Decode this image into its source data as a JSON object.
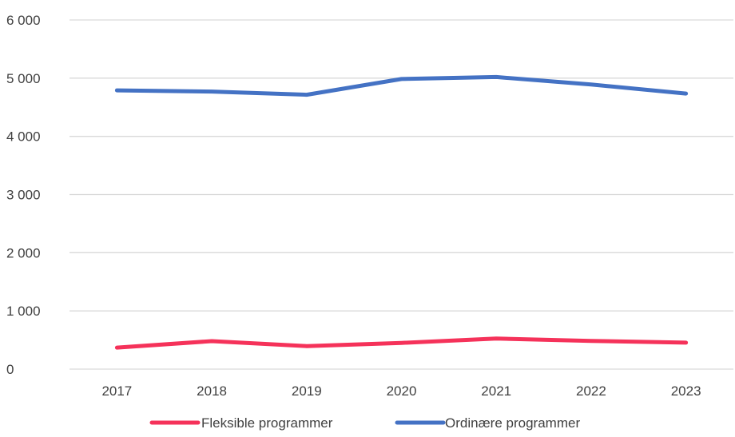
{
  "chart_data": {
    "type": "line",
    "categories": [
      "2017",
      "2018",
      "2019",
      "2020",
      "2021",
      "2022",
      "2023"
    ],
    "series": [
      {
        "name": "Fleksible programmer",
        "color": "#f5325a",
        "values": [
          370,
          480,
          395,
          450,
          525,
          485,
          455
        ]
      },
      {
        "name": "Ordinære programmer",
        "color": "#4472c4",
        "values": [
          4790,
          4770,
          4715,
          4985,
          5020,
          4890,
          4735
        ]
      }
    ],
    "ylim": [
      0,
      6000
    ],
    "yticks": [
      0,
      1000,
      2000,
      3000,
      4000,
      5000,
      6000
    ],
    "ytick_labels": [
      "0",
      "1 000",
      "2 000",
      "3 000",
      "4 000",
      "5 000",
      "6 000"
    ],
    "grid": true,
    "legend": "bottom"
  }
}
